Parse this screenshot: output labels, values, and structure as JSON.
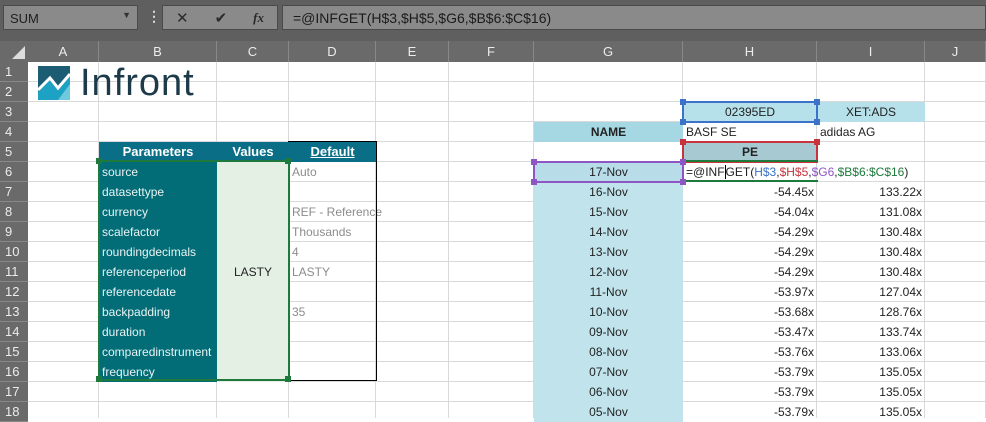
{
  "formula_bar": {
    "name_box": "SUM",
    "cancel_icon": "✕",
    "enter_icon": "✔",
    "fx_label": "fx",
    "formula": "=@INFGET(H$3,$H$5,$G6,$B$6:$C$16)"
  },
  "columns": [
    "A",
    "B",
    "C",
    "D",
    "E",
    "F",
    "G",
    "H",
    "I",
    "J"
  ],
  "rows": [
    "1",
    "2",
    "3",
    "4",
    "5",
    "6",
    "7",
    "8",
    "9",
    "10",
    "11",
    "12",
    "13",
    "14",
    "15",
    "16",
    "17",
    "18"
  ],
  "logo": {
    "text": "Infront",
    "color": "#1d3a4a",
    "accent": "#1ea2c3"
  },
  "params_table": {
    "headers": [
      "Parameters",
      "Values",
      "Default"
    ],
    "rows": [
      {
        "param": "source",
        "value": "",
        "default": "Auto"
      },
      {
        "param": "datasettype",
        "value": "",
        "default": ""
      },
      {
        "param": "currency",
        "value": "",
        "default": "REF - Reference"
      },
      {
        "param": "scalefactor",
        "value": "",
        "default": "Thousands"
      },
      {
        "param": "roundingdecimals",
        "value": "",
        "default": "4"
      },
      {
        "param": "referenceperiod",
        "value": "LASTY",
        "default": "LASTY"
      },
      {
        "param": "referencedate",
        "value": "",
        "default": ""
      },
      {
        "param": "backpadding",
        "value": "",
        "default": "35"
      },
      {
        "param": "duration",
        "value": "",
        "default": ""
      },
      {
        "param": "comparedinstrument",
        "value": "",
        "default": ""
      },
      {
        "param": "frequency",
        "value": "",
        "default": ""
      }
    ]
  },
  "instruments": {
    "H3": "02395ED",
    "I3": "XET:ADS",
    "G4": "NAME",
    "H4": "BASF SE",
    "I4": "adidas AG",
    "H5": "PE"
  },
  "editing": {
    "G6": "17-Nov",
    "parts": [
      {
        "t": "=@INF",
        "c": "#222222"
      },
      {
        "t": "GET(",
        "c": "#222222"
      },
      {
        "t": "H$3",
        "c": "#3a73c9"
      },
      {
        "t": ",",
        "c": "#222222"
      },
      {
        "t": "$H$5",
        "c": "#c8333c"
      },
      {
        "t": ",",
        "c": "#222222"
      },
      {
        "t": "$G6",
        "c": "#8e55c4"
      },
      {
        "t": ",",
        "c": "#222222"
      },
      {
        "t": "$B$6:$C$16",
        "c": "#1e7a3c"
      },
      {
        "t": ")",
        "c": "#222222"
      }
    ]
  },
  "series": [
    {
      "date": "16-Nov",
      "basf": "-54.45x",
      "adidas": "133.22x"
    },
    {
      "date": "15-Nov",
      "basf": "-54.04x",
      "adidas": "131.08x"
    },
    {
      "date": "14-Nov",
      "basf": "-54.29x",
      "adidas": "130.48x"
    },
    {
      "date": "13-Nov",
      "basf": "-54.29x",
      "adidas": "130.48x"
    },
    {
      "date": "12-Nov",
      "basf": "-54.29x",
      "adidas": "130.48x"
    },
    {
      "date": "11-Nov",
      "basf": "-53.97x",
      "adidas": "127.04x"
    },
    {
      "date": "10-Nov",
      "basf": "-53.68x",
      "adidas": "128.76x"
    },
    {
      "date": "09-Nov",
      "basf": "-53.47x",
      "adidas": "133.74x"
    },
    {
      "date": "08-Nov",
      "basf": "-53.76x",
      "adidas": "133.06x"
    },
    {
      "date": "07-Nov",
      "basf": "-53.79x",
      "adidas": "135.05x"
    },
    {
      "date": "06-Nov",
      "basf": "-53.79x",
      "adidas": "135.05x"
    },
    {
      "date": "05-Nov",
      "basf": "-53.79x",
      "adidas": "135.05x"
    }
  ]
}
